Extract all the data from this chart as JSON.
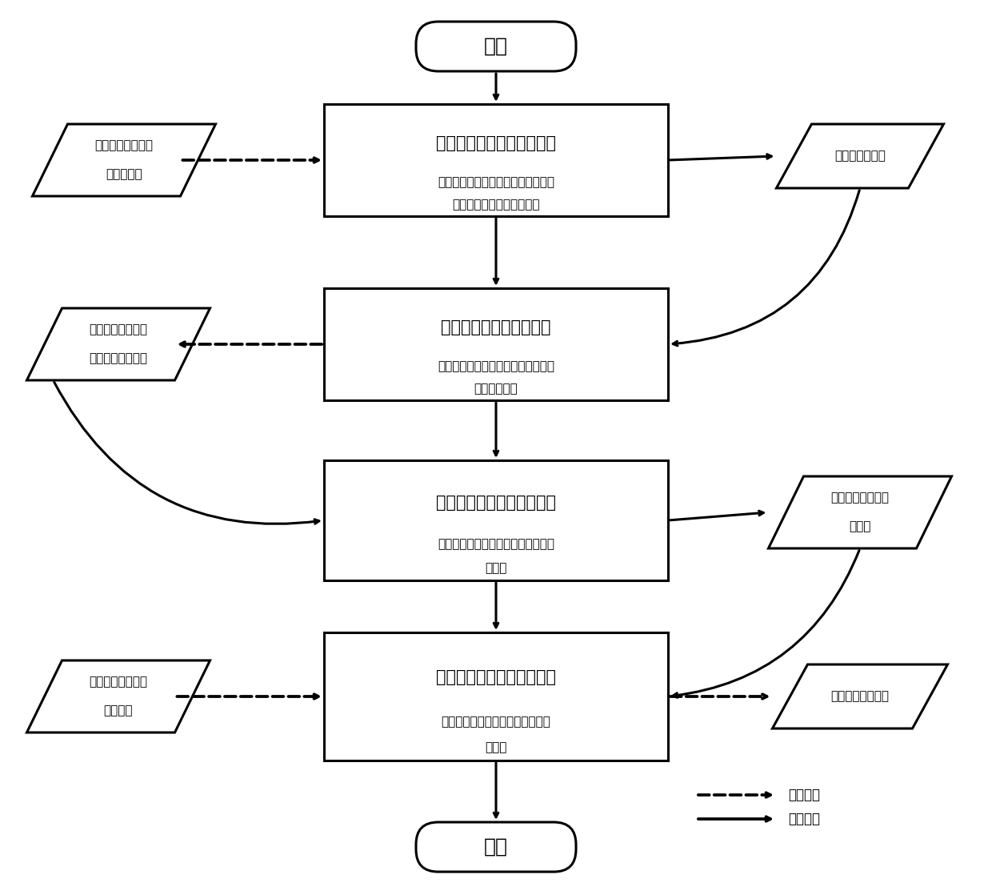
{
  "background_color": "#ffffff",
  "start_label": "开始",
  "end_label": "结束",
  "main_boxes": [
    {
      "title": "基于感知深度划分特征层级",
      "subtitle_line1": "依赖影像数据与知识关联提供一种感",
      "subtitle_line2": "知级别的特征层次划分规范"
    },
    {
      "title": "层次特征尺度归一化映射",
      "subtitle_line1": "以空间尺度与维度为载体映射各层次",
      "subtitle_line2": "感知特征要素"
    },
    {
      "title": "区域化网络渐进自学习构建",
      "subtitle_line1": "综合多层次特征图约束的目标区域生",
      "subtitle_line2": "成网络"
    },
    {
      "title": "滑坡目标渐进增强约束检测",
      "subtitle_line1": "增强滑坡影像特征的复杂场景针对",
      "subtitle_line2": "性检测"
    }
  ],
  "left_para": [
    {
      "line1": "滑坡区域高分辨率",
      "line2": "影像样本集"
    },
    {
      "line1": "语义信息高度组织",
      "line2": "化的多层次特征图"
    },
    {
      "line1": "待分析的目标高分",
      "line2": "影像数据"
    }
  ],
  "right_para": [
    {
      "line1": "三层感知特征集",
      "line2": ""
    },
    {
      "line1": "面向滑坡目标的检",
      "line2": "测网络"
    },
    {
      "line1": "滑坡目标影像表现",
      "line2": ""
    }
  ],
  "legend_data": "数据流程",
  "legend_step": "步骤流程",
  "lw": 2.2,
  "arrow_lw": 2.2,
  "font_title": 15,
  "font_sub": 11,
  "font_para": 11,
  "font_se": 18,
  "font_legend": 12
}
